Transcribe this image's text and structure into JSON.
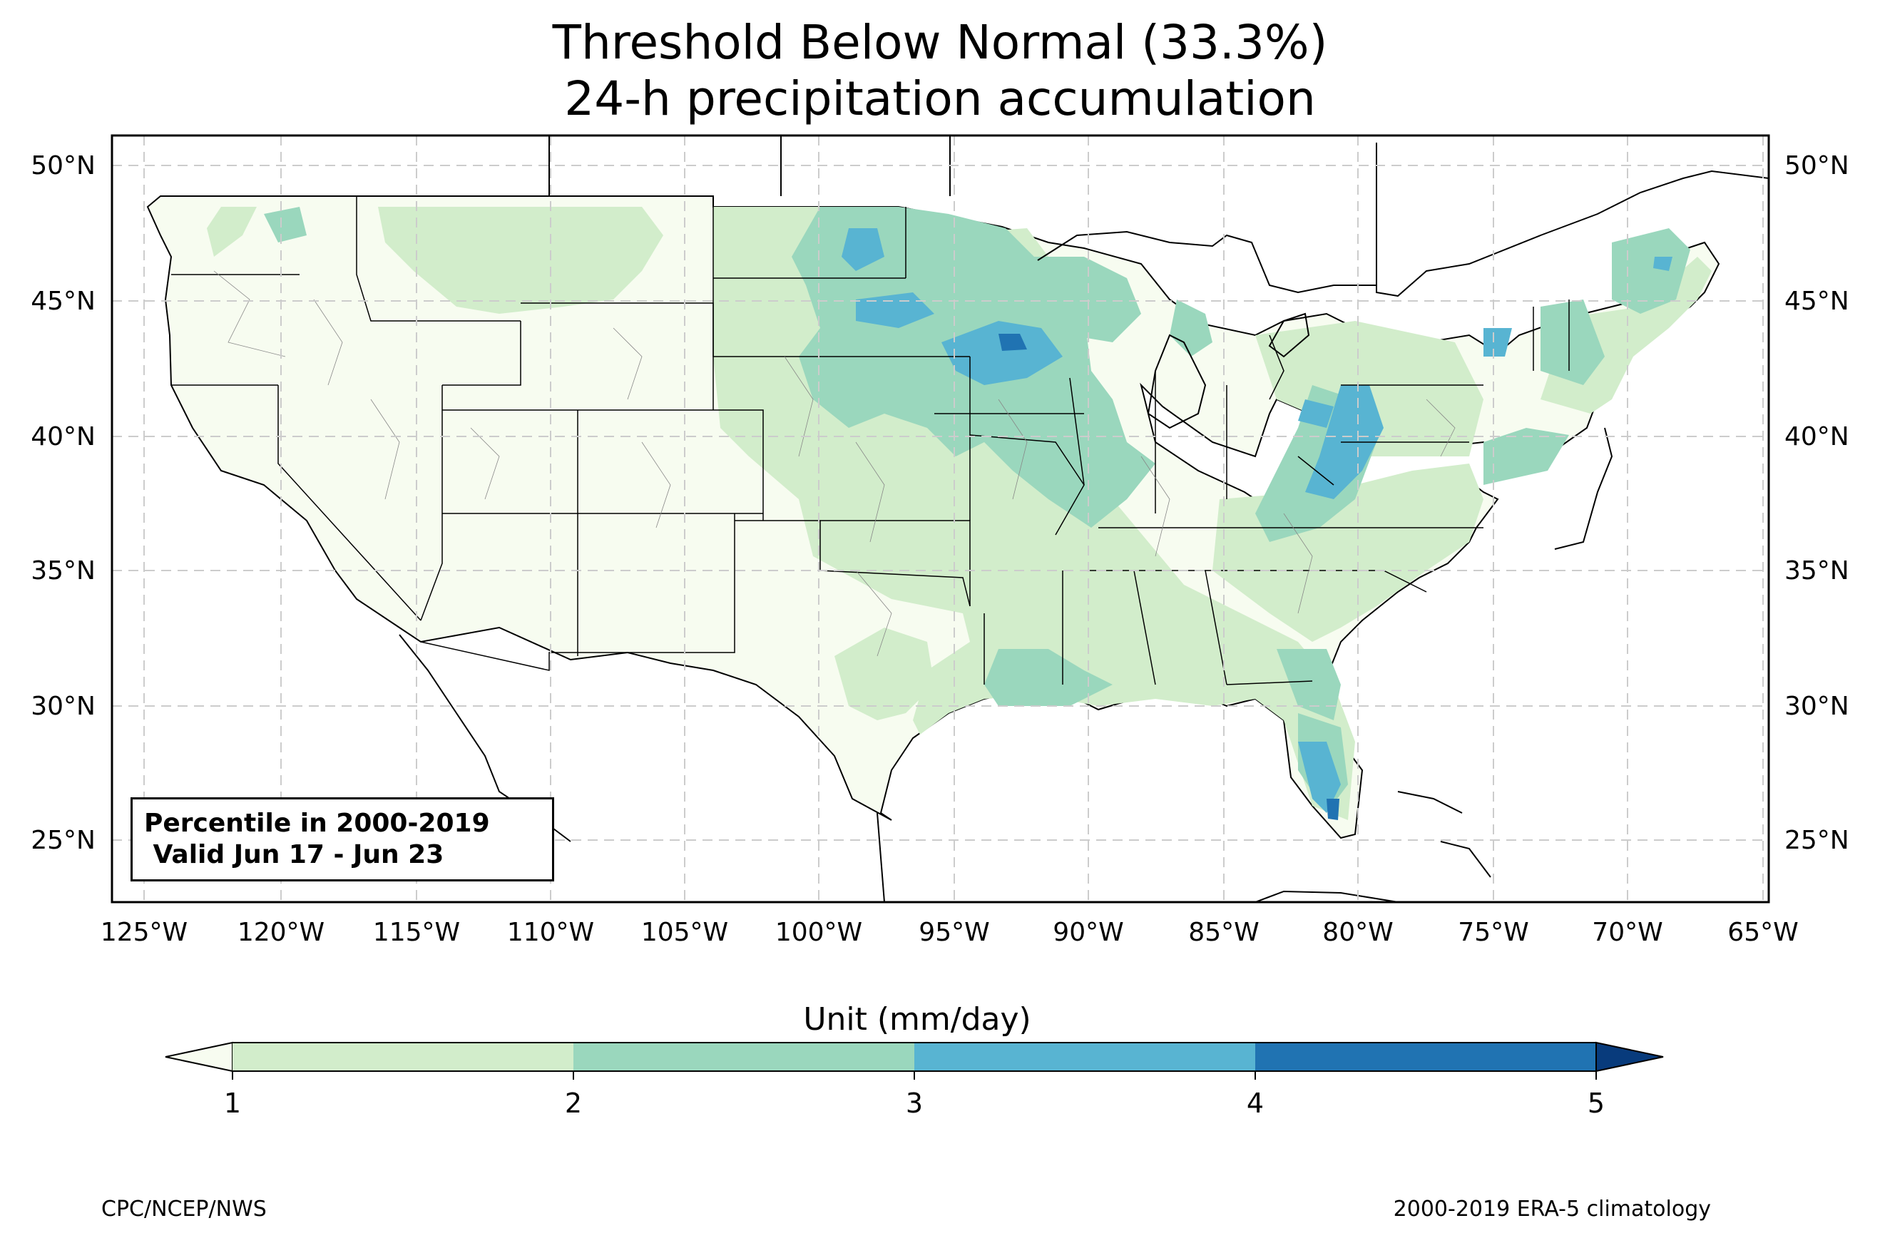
{
  "title": {
    "line1": "Threshold Below Normal (33.3%)",
    "line2": "24-h precipitation accumulation"
  },
  "map": {
    "lon_range": [
      -126.2,
      -64.8
    ],
    "lat_range": [
      22.8,
      51.2
    ],
    "lat_ticks": [
      "25°N",
      "30°N",
      "35°N",
      "40°N",
      "45°N",
      "50°N"
    ],
    "lon_ticks": [
      "125°W",
      "120°W",
      "115°W",
      "110°W",
      "105°W",
      "100°W",
      "95°W",
      "90°W",
      "85°W",
      "80°W",
      "75°W",
      "70°W",
      "65°W"
    ],
    "gridlines": "dashed",
    "info_box": {
      "line1": "Percentile in 2000-2019",
      "line2": " Valid Jun 17 - Jun 23"
    },
    "fill_levels_mm_per_day": {
      "below_1": "#f7fcf0",
      "1_to_2": "#d2edcb",
      "2_to_3": "#9ad7bd",
      "3_to_4": "#58b4d2",
      "4_to_5": "#2073b2",
      "above_5": "#083b7c"
    }
  },
  "colorbar": {
    "label": "Unit (mm/day)",
    "ticks": [
      "1",
      "2",
      "3",
      "4",
      "5"
    ],
    "colors": [
      "#f7fcf0",
      "#d2edcb",
      "#9ad7bd",
      "#58b4d2",
      "#2073b2",
      "#083b7c"
    ],
    "extend": "both"
  },
  "footer": {
    "left": "CPC/NCEP/NWS",
    "right": "2000-2019 ERA-5 climatology"
  }
}
